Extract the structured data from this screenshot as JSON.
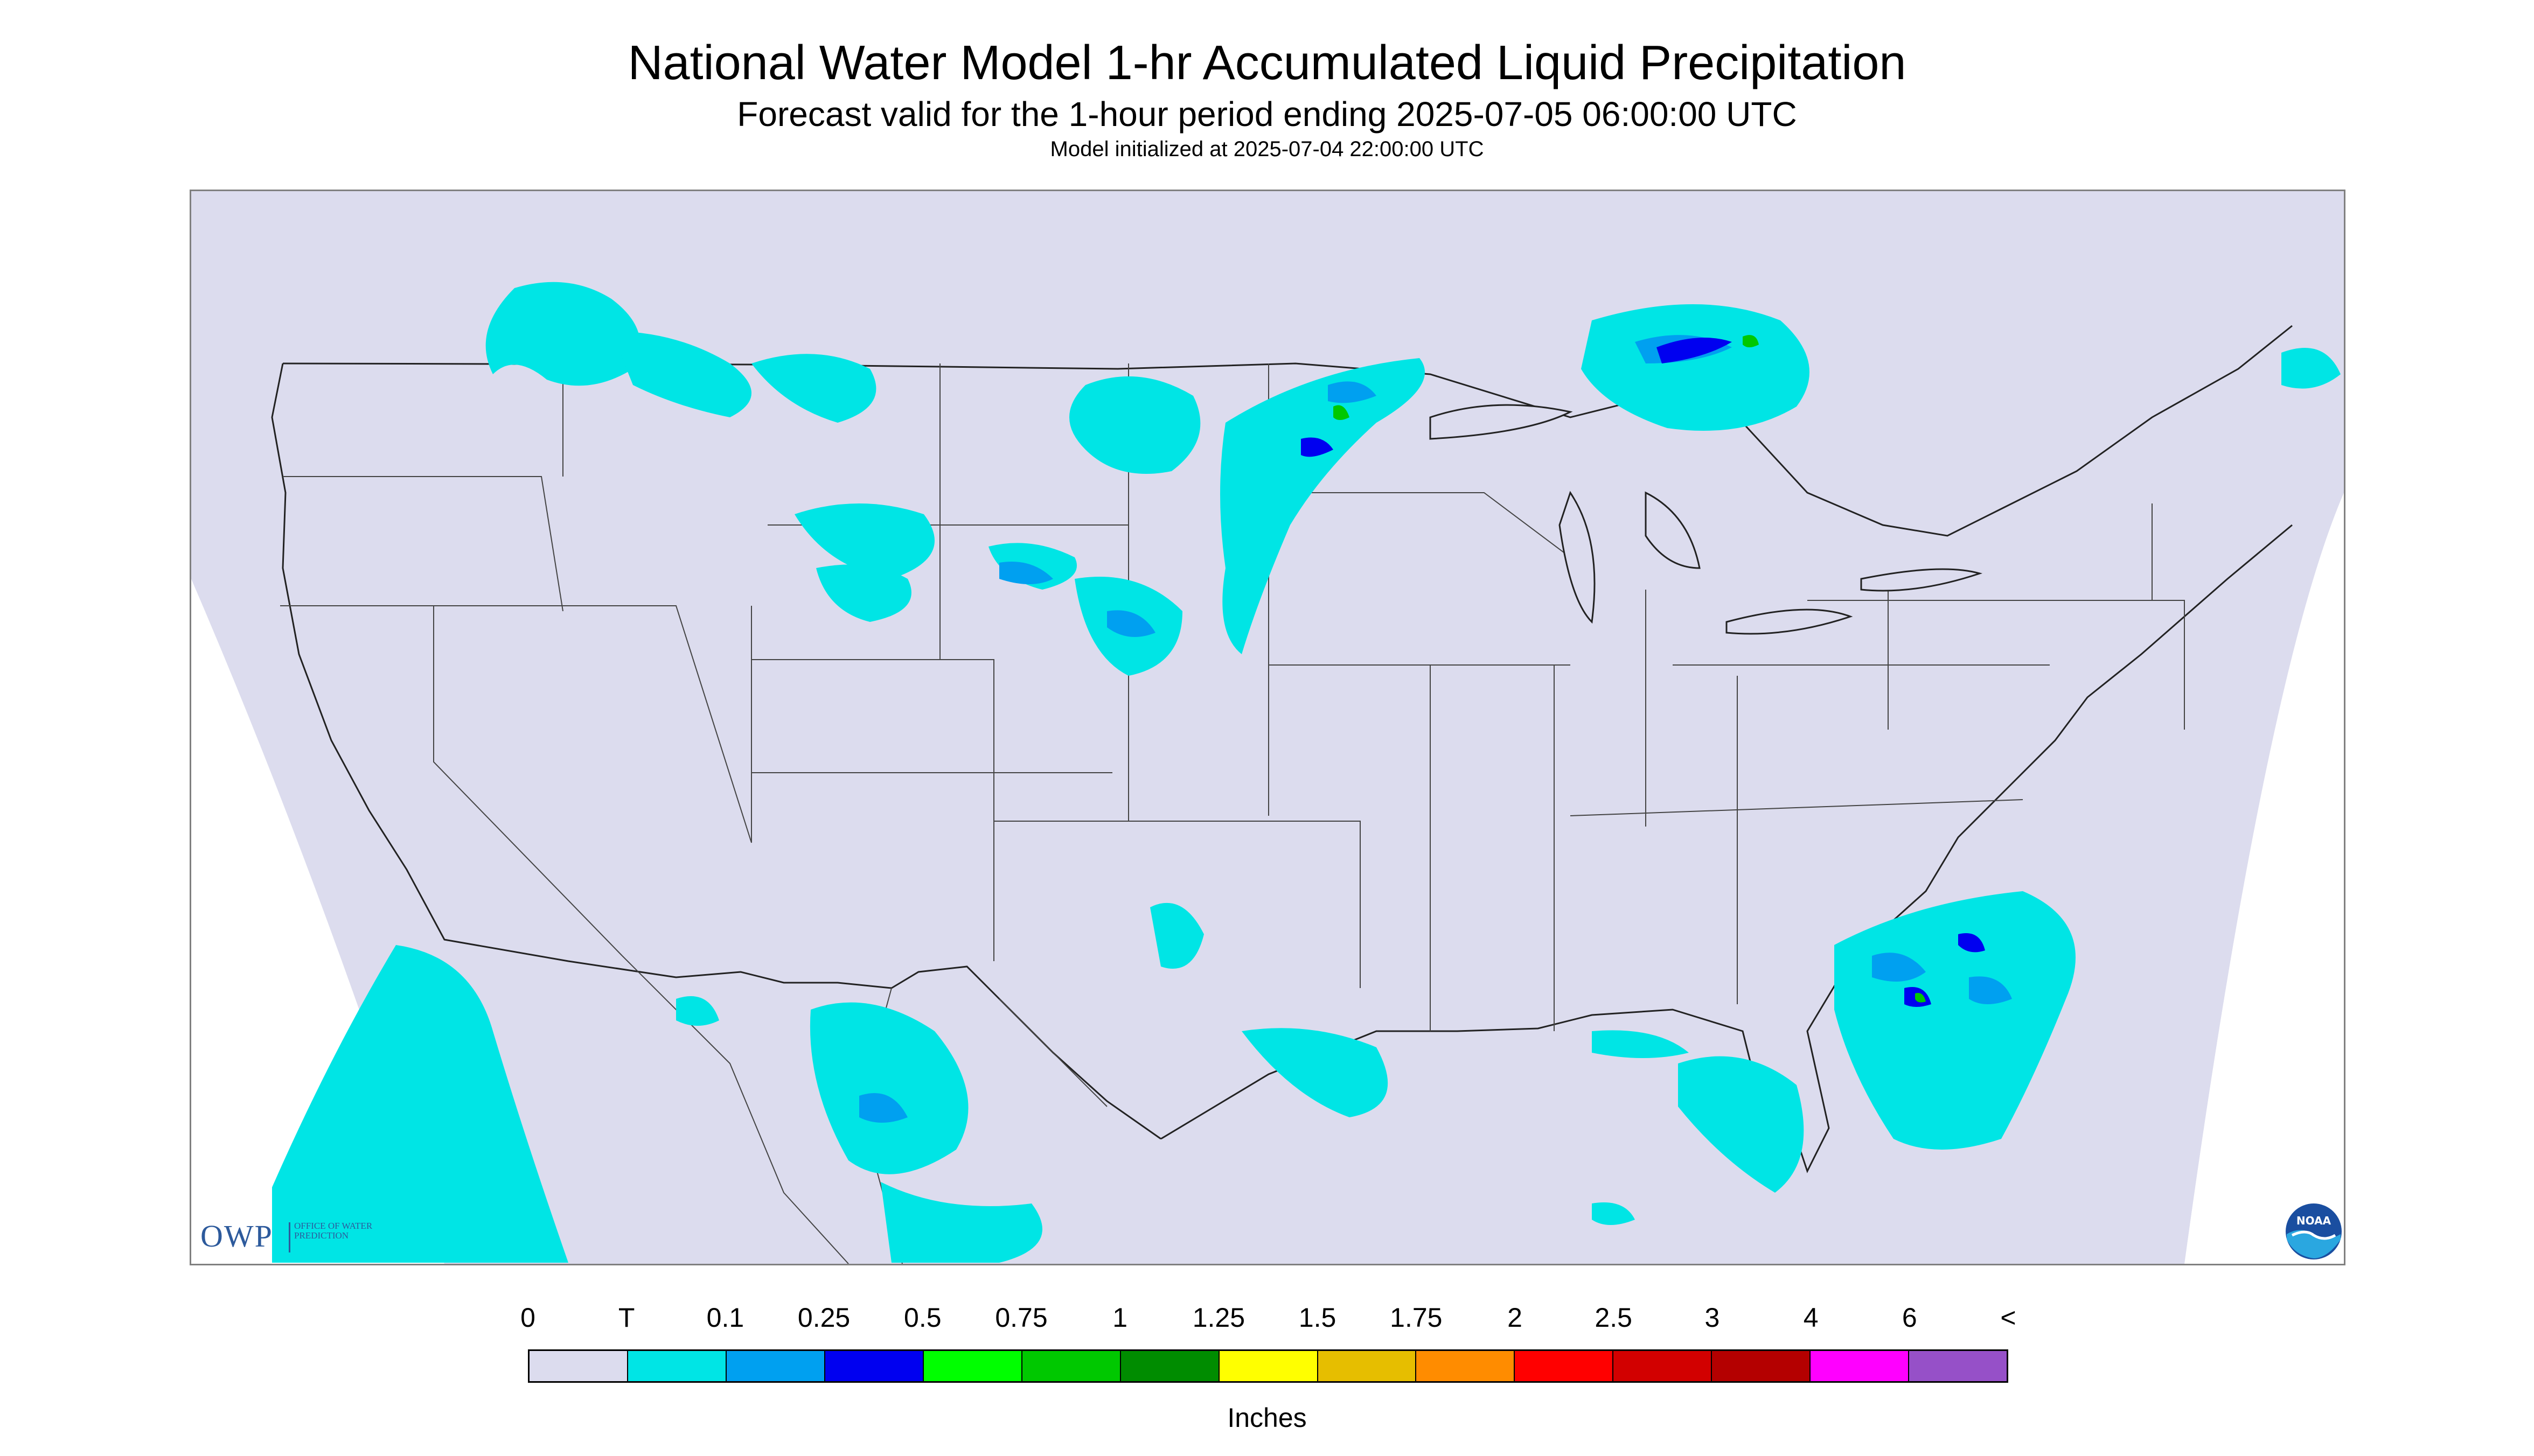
{
  "header": {
    "title": "National Water Model 1-hr Accumulated Liquid Precipitation",
    "subtitle": "Forecast valid for the 1-hour period ending 2025-07-05 06:00:00 UTC",
    "init_line": "Model initialized at 2025-07-04 22:00:00 UTC"
  },
  "logos": {
    "owp_main": "OWP",
    "owp_sub": "OFFICE OF WATER PREDICTION",
    "noaa": "NOAA"
  },
  "legend": {
    "labels": [
      "0",
      "T",
      "0.1",
      "0.25",
      "0.5",
      "0.75",
      "1",
      "1.25",
      "1.5",
      "1.75",
      "2",
      "2.5",
      "3",
      "4",
      "6",
      "<"
    ],
    "colors": [
      "#dcdcee",
      "#00e5e5",
      "#00a0f0",
      "#0000f0",
      "#00ff00",
      "#00c800",
      "#008c00",
      "#ffff00",
      "#e6be00",
      "#ff8c00",
      "#ff0000",
      "#d20000",
      "#b40000",
      "#ff00ff",
      "#9650c8"
    ],
    "units": "Inches"
  },
  "map": {
    "no_data_color": "#dcdcee",
    "precip_colors": {
      "trace": "#00e5e5",
      "light": "#00a0f0",
      "moderate": "#0000f0",
      "heavy": "#00c800"
    }
  }
}
